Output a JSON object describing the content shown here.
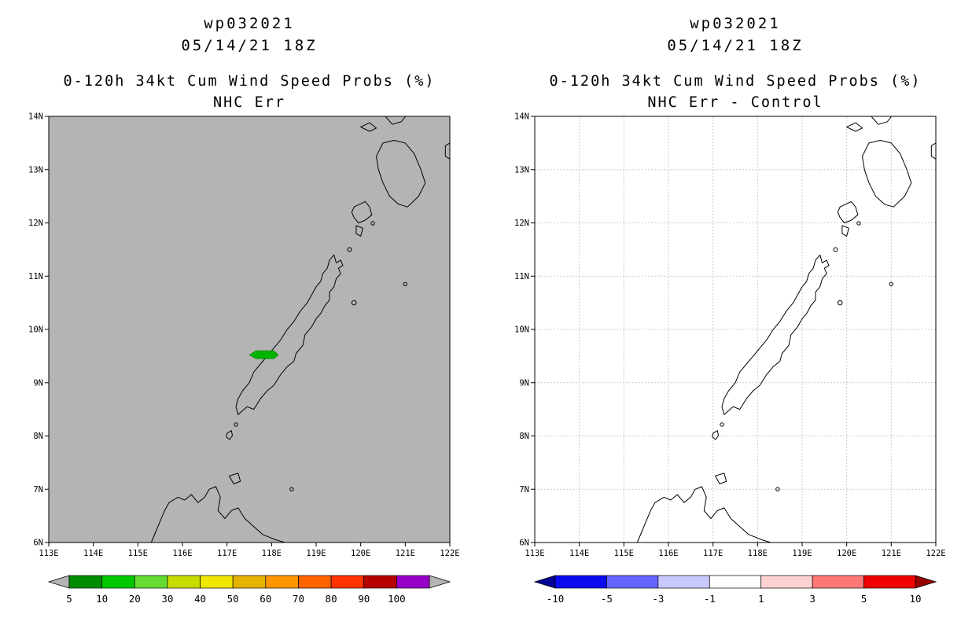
{
  "panels": [
    {
      "title_line1": "wp032021",
      "title_line2": "05/14/21 18Z",
      "title_line3": "0-120h 34kt Cum Wind Speed Probs (%)",
      "title_line4": "NHC Err",
      "map_bg": "#b4b4b4",
      "grid": false,
      "lat_labels": [
        "14N",
        "13N",
        "12N",
        "11N",
        "10N",
        "9N",
        "8N",
        "7N",
        "6N"
      ],
      "lon_labels": [
        "113E",
        "114E",
        "115E",
        "116E",
        "117E",
        "118E",
        "119E",
        "120E",
        "121E",
        "122E"
      ],
      "patch_color": "#00b400",
      "colorbar": {
        "labels": [
          "5",
          "10",
          "20",
          "30",
          "40",
          "50",
          "60",
          "70",
          "80",
          "90",
          "100"
        ],
        "colors": [
          "#008c00",
          "#00c800",
          "#64dc32",
          "#c8dc00",
          "#f0e600",
          "#e6b400",
          "#ff9600",
          "#ff6400",
          "#ff3200",
          "#b40000",
          "#9600c8"
        ],
        "arrow_left": "#b4b4b4",
        "arrow_right": "#b4b4b4"
      }
    },
    {
      "title_line1": "wp032021",
      "title_line2": "05/14/21 18Z",
      "title_line3": "0-120h 34kt Cum Wind Speed Probs (%)",
      "title_line4": "NHC Err - Control",
      "map_bg": "#ffffff",
      "grid": true,
      "lat_labels": [
        "14N",
        "13N",
        "12N",
        "11N",
        "10N",
        "9N",
        "8N",
        "7N",
        "6N"
      ],
      "lon_labels": [
        "113E",
        "114E",
        "115E",
        "116E",
        "117E",
        "118E",
        "119E",
        "120E",
        "121E",
        "122E"
      ],
      "colorbar": {
        "labels": [
          "-10",
          "-5",
          "-3",
          "-1",
          "1",
          "3",
          "5",
          "10"
        ],
        "colors": [
          "#0a0af0",
          "#6464ff",
          "#c8c8ff",
          "#ffffff",
          "#ffd2d2",
          "#ff7878",
          "#f00000"
        ],
        "arrow_left": "#000096",
        "arrow_right": "#960000"
      }
    }
  ],
  "chart_data": [
    {
      "type": "heatmap",
      "title": "wp032021 05/14/21 18Z",
      "subtitle": "0-120h 34kt Cum Wind Speed Probs (%) NHC Err",
      "xlim": [
        113,
        122
      ],
      "ylim": [
        6,
        14
      ],
      "x_tick_labels": [
        "113E",
        "114E",
        "115E",
        "116E",
        "117E",
        "118E",
        "119E",
        "120E",
        "121E",
        "122E"
      ],
      "y_tick_labels": [
        "6N",
        "7N",
        "8N",
        "9N",
        "10N",
        "11N",
        "12N",
        "13N",
        "14N"
      ],
      "grid": false,
      "legend_position": "bottom",
      "levels": [
        5,
        10,
        20,
        30,
        40,
        50,
        60,
        70,
        80,
        90,
        100
      ],
      "level_colors": [
        "#008c00",
        "#00c800",
        "#64dc32",
        "#c8dc00",
        "#f0e600",
        "#e6b400",
        "#ff9600",
        "#ff6400",
        "#ff3200",
        "#b40000",
        "#9600c8"
      ],
      "data_regions": [
        {
          "approx_lon_range": [
            117.5,
            118.15
          ],
          "approx_lat_range": [
            9.45,
            9.6
          ],
          "value": "5-10",
          "color": "#00b400",
          "note": "small green shaded probability area just west of central Palawan"
        }
      ]
    },
    {
      "type": "heatmap",
      "title": "wp032021 05/14/21 18Z",
      "subtitle": "0-120h 34kt Cum Wind Speed Probs (%) NHC Err - Control",
      "xlim": [
        113,
        122
      ],
      "ylim": [
        6,
        14
      ],
      "x_tick_labels": [
        "113E",
        "114E",
        "115E",
        "116E",
        "117E",
        "118E",
        "119E",
        "120E",
        "121E",
        "122E"
      ],
      "y_tick_labels": [
        "6N",
        "7N",
        "8N",
        "9N",
        "10N",
        "11N",
        "12N",
        "13N",
        "14N"
      ],
      "grid": true,
      "legend_position": "bottom",
      "levels": [
        -10,
        -5,
        -3,
        -1,
        1,
        3,
        5,
        10
      ],
      "level_colors": [
        "#0a0af0",
        "#6464ff",
        "#c8c8ff",
        "#ffffff",
        "#ffd2d2",
        "#ff7878",
        "#f00000"
      ],
      "data_regions": []
    }
  ]
}
